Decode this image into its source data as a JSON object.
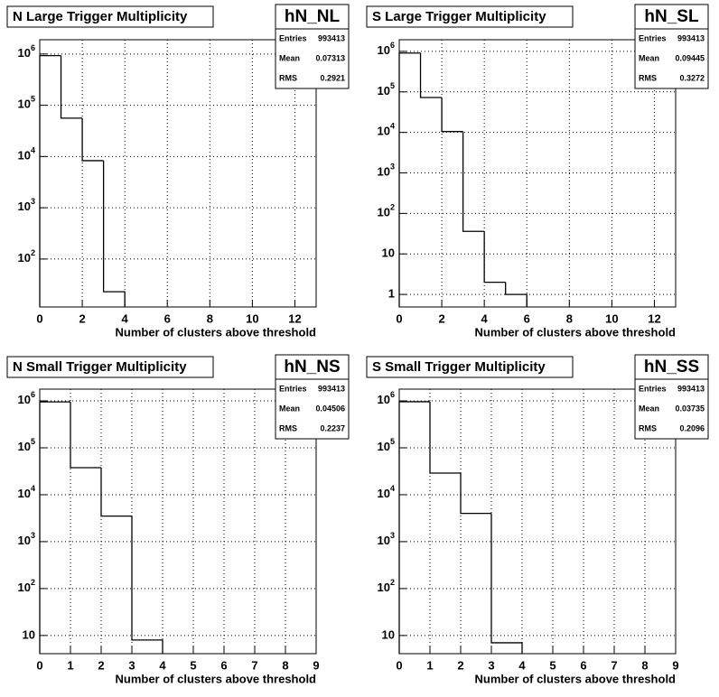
{
  "chart_data": [
    {
      "type": "histogram",
      "title": "N Large Trigger Multiplicity",
      "x_label": "Number of clusters above threshold",
      "bins": [
        0,
        1,
        2,
        3,
        4
      ],
      "values": [
        929000,
        56000,
        8300,
        23
      ],
      "color": "#000000",
      "xlim": [
        0,
        13
      ],
      "xticks": [
        0,
        2,
        4,
        6,
        8,
        10,
        12
      ],
      "log_y": true,
      "ylim": [
        11.6,
        1900000
      ],
      "yticks": [
        {
          "value": 100,
          "label": "10",
          "exponent": 2
        },
        {
          "value": 1000,
          "label": "10",
          "exponent": 3
        },
        {
          "value": 10000,
          "label": "10",
          "exponent": 4
        },
        {
          "value": 100000,
          "label": "10",
          "exponent": 5
        },
        {
          "value": 1000000,
          "label": "10",
          "exponent": 6
        }
      ],
      "grid": true,
      "stats": {
        "title": "hN_NL",
        "rows": [
          {
            "label": "Entries",
            "value": 993413
          },
          {
            "label": "Mean",
            "value": 0.07313
          },
          {
            "label": "RMS",
            "value": 0.2921
          }
        ]
      }
    },
    {
      "type": "histogram",
      "title": "S Large Trigger Multiplicity",
      "x_label": "Number of clusters above threshold",
      "bins": [
        0,
        1,
        2,
        3,
        4,
        5,
        6
      ],
      "values": [
        910174,
        72700,
        10500,
        36,
        2,
        1
      ],
      "color": "#000000",
      "xlim": [
        0,
        13
      ],
      "xticks": [
        0,
        2,
        4,
        6,
        8,
        10,
        12
      ],
      "log_y": true,
      "ylim": [
        0.49,
        1940000
      ],
      "yticks": [
        1,
        10,
        {
          "value": 100,
          "label": "10",
          "exponent": 2
        },
        {
          "value": 1000,
          "label": "10",
          "exponent": 3
        },
        {
          "value": 10000,
          "label": "10",
          "exponent": 4
        },
        {
          "value": 100000,
          "label": "10",
          "exponent": 5
        },
        {
          "value": 1000000,
          "label": "10",
          "exponent": 6
        }
      ],
      "grid": true,
      "stats": {
        "title": "hN_SL",
        "rows": [
          {
            "label": "Entries",
            "value": 993413
          },
          {
            "label": "Mean",
            "value": 0.09445
          },
          {
            "label": "RMS",
            "value": 0.3272
          }
        ]
      }
    },
    {
      "type": "histogram",
      "title": "N Small Trigger Multiplicity",
      "x_label": "Number of clusters above threshold",
      "bins": [
        0,
        1,
        2,
        3,
        4
      ],
      "values": [
        952205,
        37700,
        3500,
        8
      ],
      "color": "#000000",
      "xlim": [
        0,
        9
      ],
      "xticks": [
        0,
        1,
        2,
        3,
        4,
        5,
        6,
        7,
        8,
        9
      ],
      "log_y": true,
      "ylim": [
        4.1,
        1780000
      ],
      "yticks": [
        10,
        {
          "value": 100,
          "label": "10",
          "exponent": 2
        },
        {
          "value": 1000,
          "label": "10",
          "exponent": 3
        },
        {
          "value": 10000,
          "label": "10",
          "exponent": 4
        },
        {
          "value": 100000,
          "label": "10",
          "exponent": 5
        },
        {
          "value": 1000000,
          "label": "10",
          "exponent": 6
        }
      ],
      "grid": true,
      "stats": {
        "title": "hN_NS",
        "rows": [
          {
            "label": "Entries",
            "value": 993413
          },
          {
            "label": "Mean",
            "value": 0.04506
          },
          {
            "label": "RMS",
            "value": 0.2237
          }
        ]
      }
    },
    {
      "type": "histogram",
      "title": "S Small Trigger Multiplicity",
      "x_label": "Number of clusters above threshold",
      "bins": [
        0,
        1,
        2,
        3,
        4
      ],
      "values": [
        960500,
        28900,
        4000,
        7
      ],
      "color": "#000000",
      "xlim": [
        0,
        9
      ],
      "xticks": [
        0,
        1,
        2,
        3,
        4,
        5,
        6,
        7,
        8,
        9
      ],
      "log_y": true,
      "ylim": [
        4.1,
        1780000
      ],
      "yticks": [
        10,
        {
          "value": 100,
          "label": "10",
          "exponent": 2
        },
        {
          "value": 1000,
          "label": "10",
          "exponent": 3
        },
        {
          "value": 10000,
          "label": "10",
          "exponent": 4
        },
        {
          "value": 100000,
          "label": "10",
          "exponent": 5
        },
        {
          "value": 1000000,
          "label": "10",
          "exponent": 6
        }
      ],
      "grid": true,
      "stats": {
        "title": "hN_SS",
        "rows": [
          {
            "label": "Entries",
            "value": 993413
          },
          {
            "label": "Mean",
            "value": 0.03735
          },
          {
            "label": "RMS",
            "value": 0.2096
          }
        ]
      }
    }
  ]
}
